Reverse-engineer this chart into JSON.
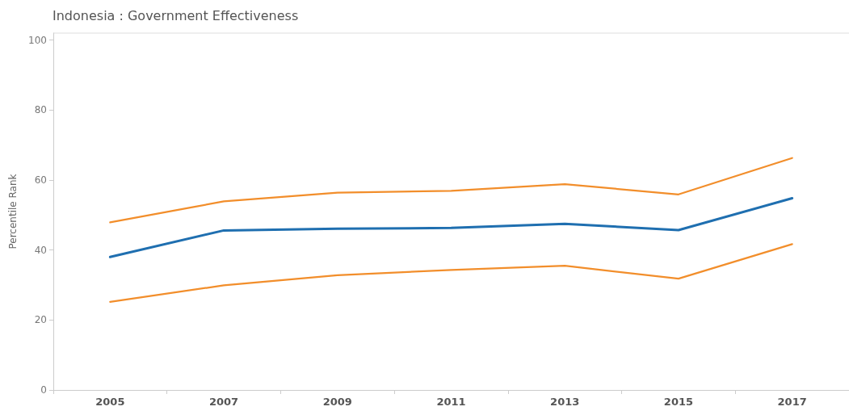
{
  "chart_data": {
    "type": "line",
    "title": "Indonesia : Government Effectiveness",
    "ylabel": "Percentile Rank",
    "categories": [
      "2005",
      "2007",
      "2009",
      "2011",
      "2013",
      "2015",
      "2017"
    ],
    "series": [
      {
        "color": "#f28e2b",
        "values": [
          47.9,
          53.9,
          56.4,
          56.9,
          58.8,
          55.9,
          66.3
        ]
      },
      {
        "color": "#1f6fb0",
        "values": [
          38.0,
          45.6,
          46.1,
          46.3,
          47.5,
          45.7,
          54.8
        ]
      },
      {
        "color": "#f28e2b",
        "values": [
          25.2,
          29.9,
          32.8,
          34.3,
          35.5,
          31.8,
          41.7
        ]
      }
    ],
    "ylim": [
      0,
      102
    ],
    "yticks": [
      0,
      20,
      40,
      60,
      80,
      100
    ],
    "grid": false,
    "marker": "none",
    "line_style": "solid"
  }
}
